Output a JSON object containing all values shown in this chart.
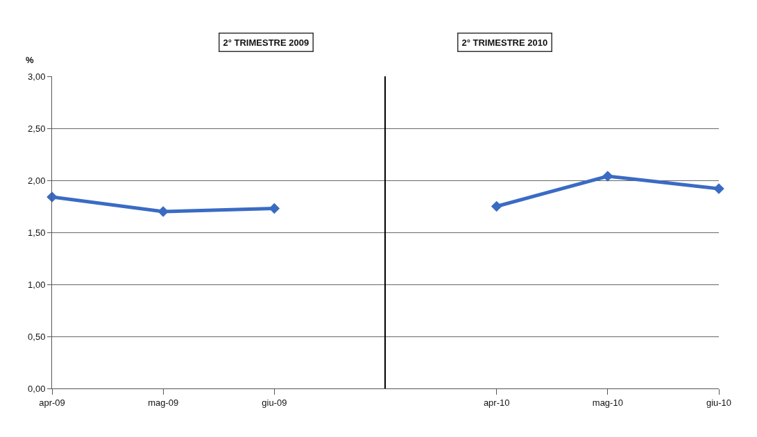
{
  "chart_data": [
    {
      "type": "line",
      "title": "2° TRIMESTRE 2009",
      "ylabel": "%",
      "categories": [
        "apr-09",
        "mag-09",
        "giu-09"
      ],
      "series": [
        {
          "color": "#3a6bc4",
          "values": [
            1.84,
            1.7,
            1.73
          ]
        }
      ],
      "ylim": [
        0,
        3
      ],
      "yticks": [
        {
          "value": 0,
          "label": "0,00"
        },
        {
          "value": 0.5,
          "label": "0,50"
        },
        {
          "value": 1,
          "label": "1,00"
        },
        {
          "value": 1.5,
          "label": "1,50"
        },
        {
          "value": 2,
          "label": "2,00"
        },
        {
          "value": 2.5,
          "label": "2,50"
        },
        {
          "value": 3,
          "label": "3,00"
        }
      ],
      "grid": "y",
      "marker": "diamond",
      "line_style": "solid"
    },
    {
      "type": "line",
      "title": "2° TRIMESTRE 2010",
      "categories": [
        "apr-10",
        "mag-10",
        "giu-10"
      ],
      "series": [
        {
          "color": "#3a6bc4",
          "values": [
            1.75,
            2.04,
            1.92
          ]
        }
      ],
      "ylim": [
        0,
        3
      ],
      "yticks": [
        0,
        0.5,
        1,
        1.5,
        2,
        2.5,
        3
      ],
      "grid": "y",
      "marker": "diamond",
      "line_style": "solid",
      "tick_labels": "x"
    }
  ]
}
